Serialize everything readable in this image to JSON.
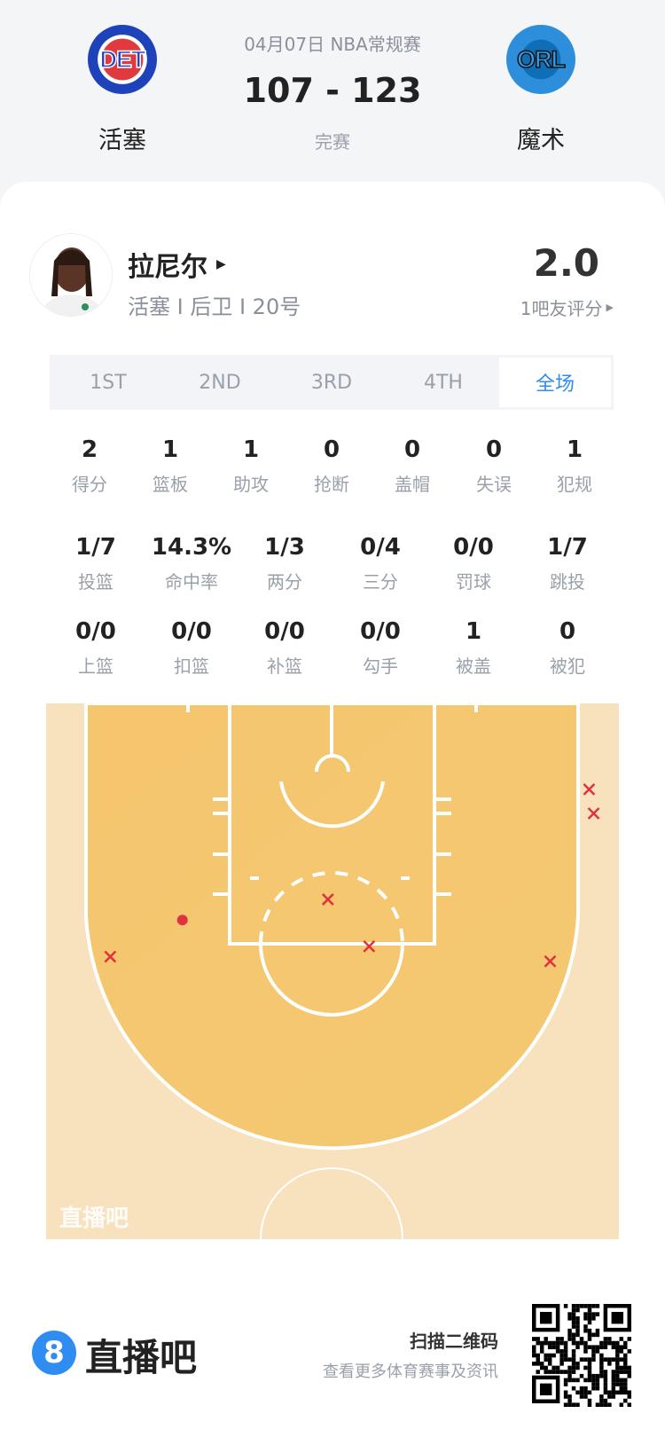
{
  "match": {
    "date_type": "04月07日 NBA常规赛",
    "score": "107 - 123",
    "status": "完赛",
    "home": {
      "abbr": "DET",
      "name": "活塞"
    },
    "away": {
      "abbr": "ORL",
      "name": "魔术"
    }
  },
  "player": {
    "name": "拉尼尔",
    "info": "活塞 I 后卫 I 20号",
    "rating": "2.0",
    "rating_label": "1吧友评分"
  },
  "tabs": [
    {
      "label": "1ST"
    },
    {
      "label": "2ND"
    },
    {
      "label": "3RD"
    },
    {
      "label": "4TH"
    },
    {
      "label": "全场",
      "active": true
    }
  ],
  "stats_row1": [
    {
      "v": "2",
      "l": "得分"
    },
    {
      "v": "1",
      "l": "篮板"
    },
    {
      "v": "1",
      "l": "助攻"
    },
    {
      "v": "0",
      "l": "抢断"
    },
    {
      "v": "0",
      "l": "盖帽"
    },
    {
      "v": "0",
      "l": "失误"
    },
    {
      "v": "1",
      "l": "犯规"
    }
  ],
  "stats_row2": [
    {
      "v": "1/7",
      "l": "投篮"
    },
    {
      "v": "14.3%",
      "l": "命中率"
    },
    {
      "v": "1/3",
      "l": "两分"
    },
    {
      "v": "0/4",
      "l": "三分"
    },
    {
      "v": "0/0",
      "l": "罚球"
    },
    {
      "v": "1/7",
      "l": "跳投"
    }
  ],
  "stats_row3": [
    {
      "v": "0/0",
      "l": "上篮"
    },
    {
      "v": "0/0",
      "l": "扣篮"
    },
    {
      "v": "0/0",
      "l": "补篮"
    },
    {
      "v": "0/0",
      "l": "勾手"
    },
    {
      "v": "1",
      "l": "被盖"
    },
    {
      "v": "0",
      "l": "被犯"
    }
  ],
  "chart_data": {
    "type": "scatter",
    "description_units": "feet from left sideline / from baseline",
    "shots": [
      {
        "x": 47.4,
        "y": 7.5,
        "result": "miss"
      },
      {
        "x": 47.8,
        "y": 9.6,
        "result": "miss"
      },
      {
        "x": 24.6,
        "y": 17.1,
        "result": "miss"
      },
      {
        "x": 11.9,
        "y": 18.9,
        "result": "made"
      },
      {
        "x": 5.6,
        "y": 22.1,
        "result": "miss"
      },
      {
        "x": 28.2,
        "y": 21.2,
        "result": "miss"
      },
      {
        "x": 44.0,
        "y": 22.5,
        "result": "miss"
      }
    ],
    "watermark": "直播吧",
    "colors": {
      "marker": "#e0313f",
      "paint": "#f5c66e",
      "court": "#f8e2bd"
    }
  },
  "footer": {
    "brand": "直播吧",
    "brand_icon": "8",
    "scan": "扫描二维码",
    "desc": "查看更多体育赛事及资讯"
  },
  "colors": {
    "accent": "#2f8cf0"
  }
}
